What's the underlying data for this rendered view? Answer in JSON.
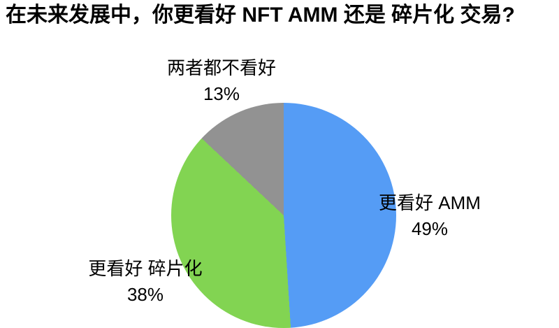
{
  "title": "在未来发展中，你更看好 NFT AMM 还是 碎片化 交易?",
  "chart_data": {
    "type": "pie",
    "title": "在未来发展中，你更看好 NFT AMM 还是 碎片化 交易?",
    "start_angle_deg": 0,
    "direction": "clockwise",
    "legend_position": "none",
    "labels_outside": true,
    "background_color": "#ffffff",
    "text_color": "#000000",
    "slices": [
      {
        "label": "更看好 AMM",
        "value": 49,
        "percent_label": "49%",
        "color": "#559CF5"
      },
      {
        "label": "更看好 碎片化",
        "value": 38,
        "percent_label": "38%",
        "color": "#82D452"
      },
      {
        "label": "两者都不看好",
        "value": 13,
        "percent_label": "13%",
        "color": "#929292"
      }
    ]
  }
}
